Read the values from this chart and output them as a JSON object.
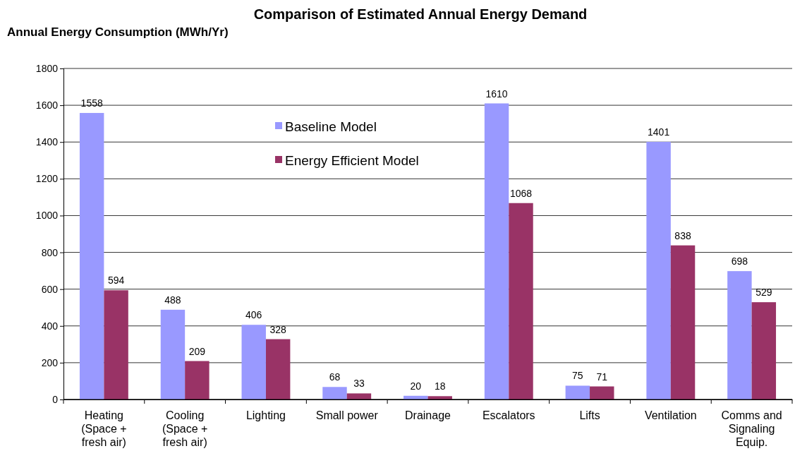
{
  "chart_data": {
    "type": "bar",
    "title": "Comparison of Estimated Annual Energy Demand",
    "ylabel": "Annual Energy Consumption (MWh/Yr)",
    "categories": [
      "Heating (Space + fresh air)",
      "Cooling (Space + fresh air)",
      "Lighting",
      "Small power",
      "Drainage",
      "Escalators",
      "Lifts",
      "Ventilation",
      "Comms and Signaling Equip."
    ],
    "series": [
      {
        "name": "Baseline Model",
        "color": "#9999ff",
        "values": [
          1558,
          488,
          406,
          68,
          20,
          1610,
          75,
          1401,
          698
        ]
      },
      {
        "name": "Energy Efficient Model",
        "color": "#993366",
        "values": [
          594,
          209,
          328,
          33,
          18,
          1068,
          71,
          838,
          529
        ]
      }
    ],
    "ylim": [
      0,
      1800
    ],
    "yticks": [
      0,
      200,
      400,
      600,
      800,
      1000,
      1200,
      1400,
      1600,
      1800
    ],
    "grid": "y",
    "legend": "top",
    "data_labels": true
  }
}
